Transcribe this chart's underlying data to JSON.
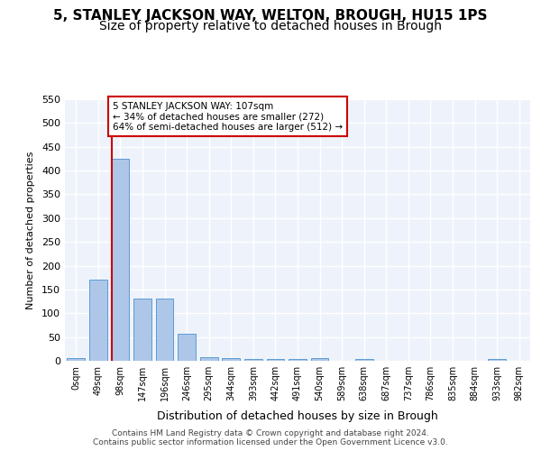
{
  "title": "5, STANLEY JACKSON WAY, WELTON, BROUGH, HU15 1PS",
  "subtitle": "Size of property relative to detached houses in Brough",
  "xlabel": "Distribution of detached houses by size in Brough",
  "ylabel": "Number of detached properties",
  "bar_labels": [
    "0sqm",
    "49sqm",
    "98sqm",
    "147sqm",
    "196sqm",
    "246sqm",
    "295sqm",
    "344sqm",
    "393sqm",
    "442sqm",
    "491sqm",
    "540sqm",
    "589sqm",
    "638sqm",
    "687sqm",
    "737sqm",
    "786sqm",
    "835sqm",
    "884sqm",
    "933sqm",
    "982sqm"
  ],
  "bar_values": [
    5,
    170,
    425,
    130,
    130,
    57,
    8,
    6,
    3,
    3,
    3,
    5,
    0,
    3,
    0,
    0,
    0,
    0,
    0,
    3,
    0
  ],
  "bar_color": "#aec6e8",
  "bar_edge_color": "#5b9bd5",
  "background_color": "#eef3fb",
  "grid_color": "#ffffff",
  "vline_x": 1.6,
  "vline_color": "#cc0000",
  "annotation_text": "5 STANLEY JACKSON WAY: 107sqm\n← 34% of detached houses are smaller (272)\n64% of semi-detached houses are larger (512) →",
  "annotation_box_color": "#ffffff",
  "annotation_box_edge": "#cc0000",
  "ylim": [
    0,
    550
  ],
  "yticks": [
    0,
    50,
    100,
    150,
    200,
    250,
    300,
    350,
    400,
    450,
    500,
    550
  ],
  "footer_text": "Contains HM Land Registry data © Crown copyright and database right 2024.\nContains public sector information licensed under the Open Government Licence v3.0.",
  "title_fontsize": 11,
  "subtitle_fontsize": 10
}
